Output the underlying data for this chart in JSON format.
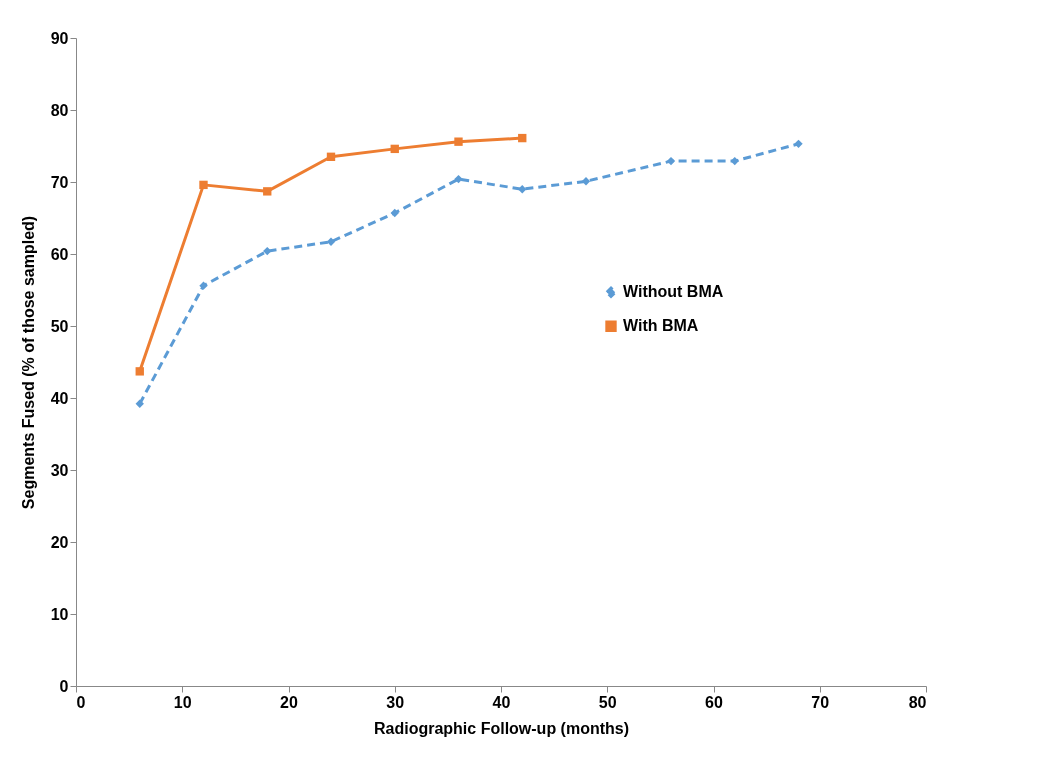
{
  "chart_data": {
    "type": "line",
    "xlabel": "Radiographic Follow-up (months)",
    "ylabel": "Segments Fused (% of those sampled)",
    "xlim": [
      0,
      80
    ],
    "xticks": [
      0,
      10,
      20,
      30,
      40,
      50,
      60,
      70,
      80
    ],
    "ylim": [
      0,
      90
    ],
    "yticks": [
      0,
      10,
      20,
      30,
      40,
      50,
      60,
      70,
      80,
      90
    ],
    "grid": false,
    "legend": "right",
    "series": [
      {
        "name": "Without BMA",
        "color": "#5b9bd5",
        "marker": "diamond",
        "line_style": "dashed",
        "x": [
          6,
          12,
          18,
          24,
          30,
          36,
          42,
          48,
          56,
          62,
          68
        ],
        "values": [
          39.2,
          55.6,
          60.4,
          61.7,
          65.7,
          70.4,
          69.0,
          70.1,
          72.9,
          72.9,
          75.3
        ]
      },
      {
        "name": "With BMA",
        "color": "#ed7d31",
        "marker": "square",
        "line_style": "solid",
        "x": [
          6,
          12,
          18,
          24,
          30,
          36,
          42
        ],
        "values": [
          43.7,
          69.6,
          68.7,
          73.5,
          74.6,
          75.6,
          76.1
        ]
      }
    ]
  }
}
